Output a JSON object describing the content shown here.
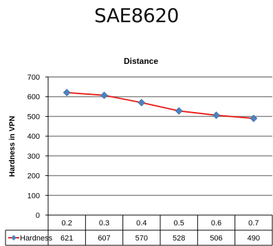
{
  "page": {
    "title": "SAE8620"
  },
  "colors": {
    "line": "#e8211b",
    "marker": "#4f81bd",
    "grid": "#808080",
    "axis": "#000000"
  },
  "chart_data": {
    "type": "line",
    "title": "Distance",
    "ylabel": "Hardness in VPN",
    "xlabel": "",
    "categories": [
      "0.2",
      "0.3",
      "0.4",
      "0.5",
      "0.6",
      "0.7"
    ],
    "series": [
      {
        "name": "Hardness",
        "values": [
          621,
          607,
          570,
          528,
          506,
          490
        ],
        "color": "#e8211b",
        "marker_color": "#4f81bd",
        "marker": "diamond"
      }
    ],
    "ylim": [
      0,
      700
    ],
    "yticks": [
      0,
      100,
      200,
      300,
      400,
      500,
      600,
      700
    ],
    "grid": true,
    "data_table": true,
    "legend": "in-data-table"
  }
}
